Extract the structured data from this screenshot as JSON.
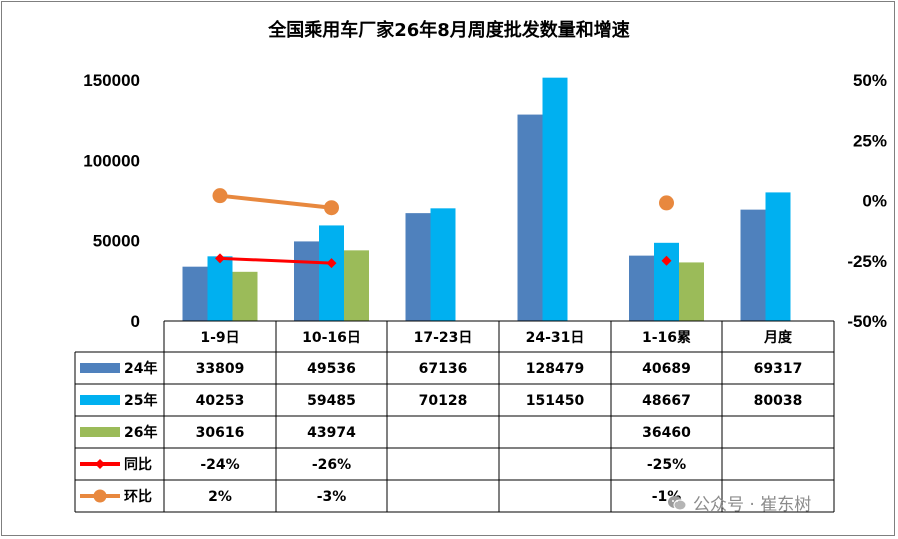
{
  "chart_data": {
    "type": "bar",
    "title": "全国乘用车厂家26年8月周度批发数量和增速",
    "categories": [
      "1-9日",
      "10-16日",
      "17-23日",
      "24-31日",
      "1-16累",
      "月度"
    ],
    "ylim": [
      0,
      150000
    ],
    "yticks": [
      "0",
      "50000",
      "100000",
      "150000"
    ],
    "y2lim": [
      -50,
      50
    ],
    "y2ticks": [
      "-50%",
      "-25%",
      "0%",
      "25%",
      "50%"
    ],
    "series": [
      {
        "name": "24年",
        "kind": "bar",
        "color": "#4f81bd",
        "values": [
          33809,
          49536,
          67136,
          128479,
          40689,
          69317
        ]
      },
      {
        "name": "25年",
        "kind": "bar",
        "color": "#00b0f0",
        "values": [
          40253,
          59485,
          70128,
          151450,
          48667,
          80038
        ]
      },
      {
        "name": "26年",
        "kind": "bar",
        "color": "#9bbb59",
        "values": [
          30616,
          43974,
          null,
          null,
          36460,
          null
        ]
      },
      {
        "name": "同比",
        "kind": "line",
        "color": "#ff0000",
        "marker": "diamond",
        "values": [
          -24,
          -26,
          null,
          null,
          -25,
          null
        ]
      },
      {
        "name": "环比",
        "kind": "line",
        "color": "#e8883e",
        "marker": "circle",
        "values": [
          2,
          -3,
          null,
          null,
          -1,
          null
        ]
      }
    ],
    "table": {
      "rows": [
        [
          "33809",
          "49536",
          "67136",
          "128479",
          "40689",
          "69317"
        ],
        [
          "40253",
          "59485",
          "70128",
          "151450",
          "48667",
          "80038"
        ],
        [
          "30616",
          "43974",
          "",
          "",
          "36460",
          ""
        ],
        [
          "-24%",
          "-26%",
          "",
          "",
          "-25%",
          ""
        ],
        [
          "2%",
          "-3%",
          "",
          "",
          "-1%",
          ""
        ]
      ]
    },
    "grid": false,
    "legend": "data-table"
  },
  "watermark": {
    "text": "公众号 · 崔东树",
    "icon": "wechat-icon"
  }
}
